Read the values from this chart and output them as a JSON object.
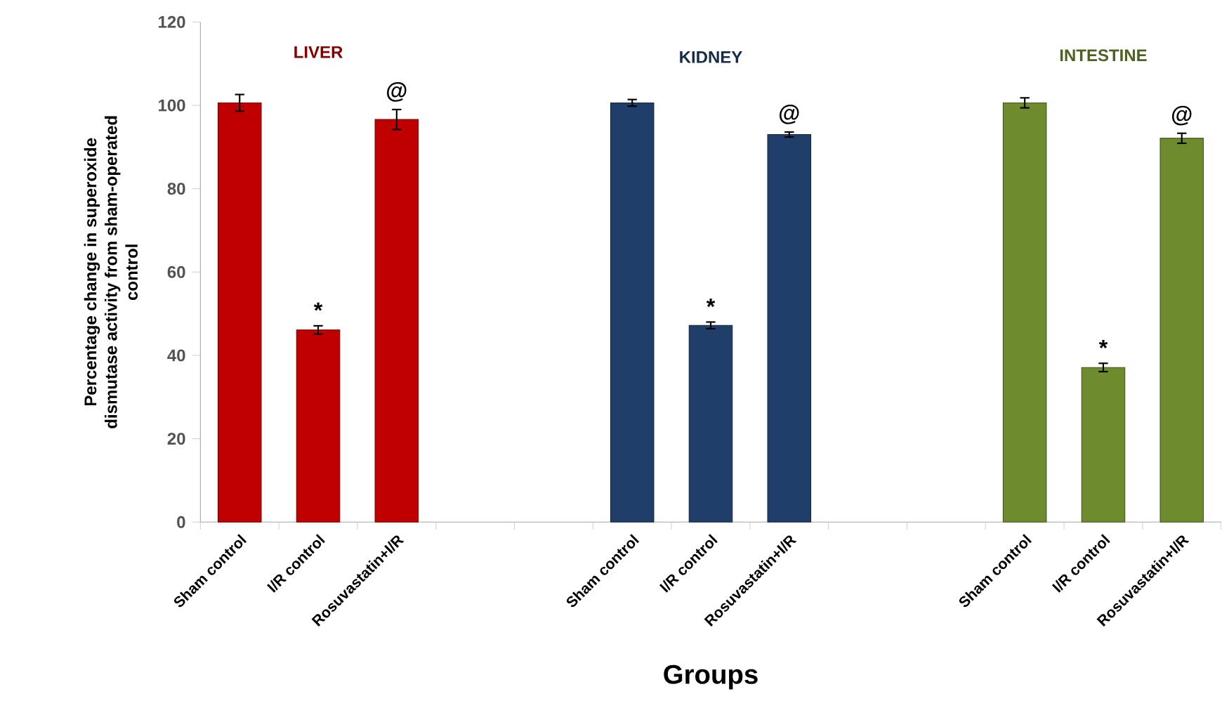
{
  "chart_data": {
    "type": "bar",
    "ylabel": "Percentage change in superoxide dismutase activity from sham-operated control",
    "xlabel": "Groups",
    "categories": [
      "Sham control",
      "I/R control",
      "Rosuvastatin+I/R",
      null,
      null,
      "Sham control",
      "I/R control",
      "Rosuvastatin+I/R",
      null,
      null,
      "Sham control",
      "I/R control",
      "Rosuvastatin+I/R"
    ],
    "series": [
      {
        "name": "LIVER",
        "color": "#c00000",
        "values": [
          100.6,
          46.1,
          96.6,
          null,
          null,
          null,
          null,
          null,
          null,
          null,
          null,
          null,
          null
        ],
        "errors": [
          2,
          1,
          2.4,
          null,
          null,
          null,
          null,
          null,
          null,
          null,
          null,
          null,
          null
        ],
        "value_labels": [
          null,
          "*",
          "@",
          null,
          null,
          null,
          null,
          null,
          null,
          null,
          null,
          null,
          null
        ]
      },
      {
        "name": "KIDNEY",
        "color": "#1f3f6a",
        "values": [
          null,
          null,
          null,
          null,
          null,
          100.6,
          47.2,
          93,
          null,
          null,
          null,
          null,
          null
        ],
        "errors": [
          null,
          null,
          null,
          null,
          null,
          0.8,
          0.8,
          0.6,
          null,
          null,
          null,
          null,
          null
        ],
        "value_labels": [
          null,
          null,
          null,
          null,
          null,
          null,
          "*",
          "@",
          null,
          null,
          null,
          null,
          null
        ]
      },
      {
        "name": "INTESTINE",
        "color": "#6e8b2e",
        "values": [
          null,
          null,
          null,
          null,
          null,
          null,
          null,
          null,
          null,
          null,
          100.6,
          37.1,
          92.1
        ],
        "errors": [
          null,
          null,
          null,
          null,
          null,
          null,
          null,
          null,
          null,
          null,
          1.2,
          1,
          1.2
        ],
        "value_labels": [
          null,
          null,
          null,
          null,
          null,
          null,
          null,
          null,
          null,
          null,
          null,
          "*",
          "@"
        ]
      }
    ],
    "ylim": [
      0,
      120
    ],
    "yticks": [
      0,
      20,
      40,
      60,
      80,
      100,
      120
    ],
    "grid": false
  }
}
